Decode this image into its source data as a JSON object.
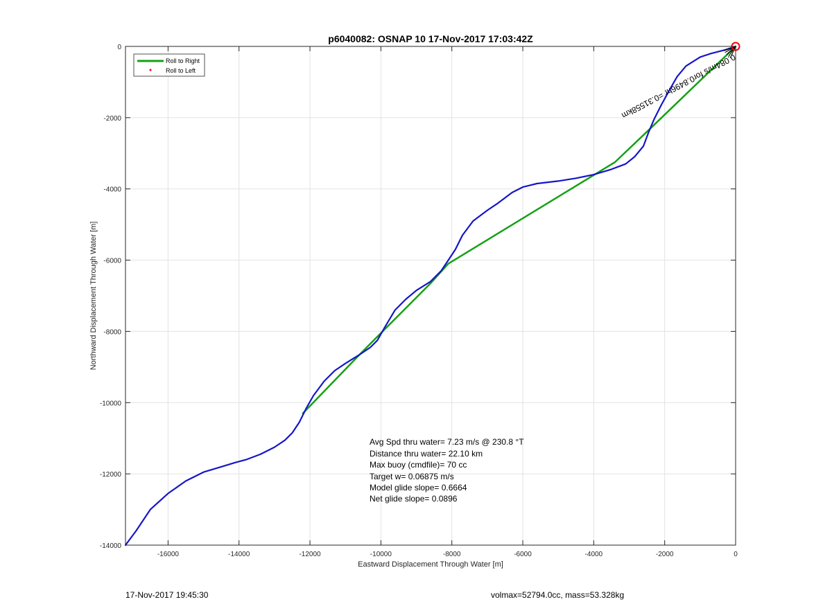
{
  "chart_data": {
    "type": "line",
    "title": "p6040082: OSNAP 10 17-Nov-2017 17:03:42Z",
    "xlabel": "Eastward Displacement Through Water [m]",
    "ylabel": "Northward Displacement Through Water [m]",
    "xlim": [
      -17200,
      0
    ],
    "ylim": [
      -14000,
      0
    ],
    "xticks": [
      -16000,
      -14000,
      -12000,
      -10000,
      -8000,
      -6000,
      -4000,
      -2000,
      0
    ],
    "yticks": [
      0,
      -2000,
      -4000,
      -6000,
      -8000,
      -10000,
      -12000,
      -14000
    ],
    "grid": true,
    "legend_position": "top-left",
    "legend": [
      {
        "label": "Roll to Right",
        "color": "#14a014",
        "marker": "line"
      },
      {
        "label": "Roll to Left",
        "color": "#ff0000",
        "marker": "dot"
      }
    ],
    "series": [
      {
        "name": "Roll to Right",
        "color": "#14a014",
        "x": [
          0,
          -2400,
          -3400,
          -8100,
          -8600,
          -10200,
          -10600,
          -12200
        ],
        "y": [
          0,
          -2300,
          -3250,
          -6100,
          -6650,
          -8250,
          -8650,
          -10300
        ]
      },
      {
        "color": "#1515c8",
        "x": [
          0,
          -300,
          -700,
          -1000,
          -1400,
          -1650,
          -1850,
          -2100,
          -2300,
          -2450,
          -2600,
          -2850,
          -3100,
          -3500,
          -4000,
          -4500,
          -5000,
          -5600,
          -6000,
          -6300,
          -6700,
          -7000,
          -7400,
          -7700,
          -7900,
          -8100,
          -8300,
          -8600,
          -9000,
          -9300,
          -9600,
          -9900,
          -10100,
          -10300,
          -10600,
          -11000,
          -11300,
          -11600,
          -11900,
          -12100,
          -12300,
          -12500,
          -12700,
          -13000,
          -13400,
          -13800,
          -14100,
          -14500,
          -15000,
          -15500,
          -16000,
          -16500,
          -16900,
          -17200
        ],
        "y": [
          0,
          -100,
          -200,
          -300,
          -550,
          -850,
          -1200,
          -1650,
          -2050,
          -2400,
          -2800,
          -3100,
          -3300,
          -3450,
          -3600,
          -3700,
          -3780,
          -3850,
          -3950,
          -4100,
          -4400,
          -4600,
          -4900,
          -5300,
          -5700,
          -6000,
          -6300,
          -6600,
          -6850,
          -7100,
          -7400,
          -7900,
          -8250,
          -8450,
          -8650,
          -8900,
          -9100,
          -9400,
          -9800,
          -10150,
          -10550,
          -10850,
          -11050,
          -11250,
          -11450,
          -11600,
          -11680,
          -11800,
          -11950,
          -12200,
          -12550,
          -13000,
          -13600,
          -14000
        ]
      }
    ],
    "annotations": {
      "current_label": "0.084 m/s for 0.8496hr =0.31558 km",
      "current_label_compact": "0.084m/s for0.8496hr =0.31558km",
      "stats": [
        "Avg Spd thru water=  7.23 m/s @ 230.8 °T",
        "Distance thru water= 22.10 km",
        "Max buoy (cmdfile)= 70 cc",
        "Target w= 0.06875 m/s",
        "Model glide slope= 0.6664",
        "Net glide slope= 0.0896"
      ]
    }
  },
  "footer": {
    "left": "17-Nov-2017 19:45:30",
    "right": "volmax=52794.0cc, mass=53.328kg"
  }
}
